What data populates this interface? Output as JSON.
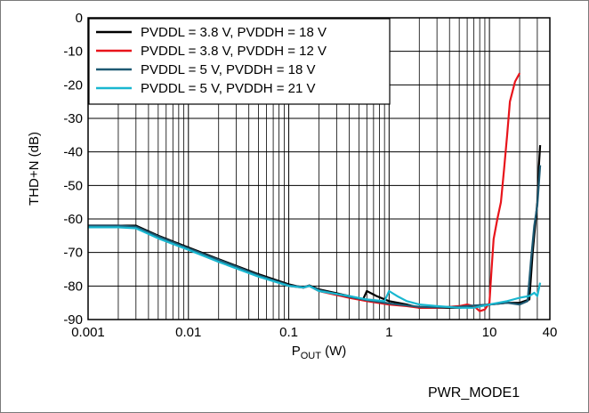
{
  "figure_id": "PWR_MODE1",
  "chart_data": {
    "type": "line",
    "xscale": "log",
    "xlim": [
      0.001,
      40
    ],
    "ylim": [
      -90,
      0
    ],
    "xlabel_main": "P",
    "xlabel_sub": "OUT",
    "xlabel_unit": " (W)",
    "ylabel": "THD+N (dB)",
    "xticks": [
      0.001,
      0.01,
      0.1,
      1,
      10,
      40
    ],
    "xtick_labels": [
      "0.001",
      "0.01",
      "0.1",
      "1",
      "10",
      "40"
    ],
    "yticks": [
      0,
      -10,
      -20,
      -30,
      -40,
      -50,
      -60,
      -70,
      -80,
      -90
    ],
    "ytick_labels": [
      "0",
      "-10",
      "-20",
      "-30",
      "-40",
      "-50",
      "-60",
      "-70",
      "-80",
      "-90"
    ],
    "grid": true,
    "legend_position": "top-left",
    "series": [
      {
        "name": "PVDDL = 3.8 V, PVDDH = 18 V",
        "color": "#000000",
        "points": [
          [
            0.001,
            -62
          ],
          [
            0.002,
            -62
          ],
          [
            0.003,
            -62
          ],
          [
            0.005,
            -65
          ],
          [
            0.01,
            -68.5
          ],
          [
            0.02,
            -72
          ],
          [
            0.05,
            -76.5
          ],
          [
            0.1,
            -79.5
          ],
          [
            0.14,
            -80.5
          ],
          [
            0.16,
            -79.8
          ],
          [
            0.2,
            -81
          ],
          [
            0.4,
            -83
          ],
          [
            0.55,
            -84
          ],
          [
            0.6,
            -81.5
          ],
          [
            0.75,
            -83
          ],
          [
            1,
            -84.5
          ],
          [
            1.5,
            -85.5
          ],
          [
            2,
            -86.5
          ],
          [
            3,
            -86.5
          ],
          [
            5,
            -86.5
          ],
          [
            7,
            -86
          ],
          [
            10,
            -85.5
          ],
          [
            15,
            -85
          ],
          [
            20,
            -85
          ],
          [
            25,
            -84
          ],
          [
            27,
            -70
          ],
          [
            29,
            -60
          ],
          [
            30,
            -55
          ],
          [
            31,
            -45
          ],
          [
            32,
            -38
          ]
        ]
      },
      {
        "name": "PVDDL = 3.8 V, PVDDH = 12 V",
        "color": "#e8141b",
        "points": [
          [
            0.001,
            -62
          ],
          [
            0.002,
            -62
          ],
          [
            0.003,
            -62.5
          ],
          [
            0.005,
            -65.5
          ],
          [
            0.01,
            -69
          ],
          [
            0.02,
            -72.5
          ],
          [
            0.05,
            -77
          ],
          [
            0.1,
            -80
          ],
          [
            0.14,
            -80.5
          ],
          [
            0.16,
            -80
          ],
          [
            0.2,
            -81.5
          ],
          [
            0.4,
            -83.5
          ],
          [
            0.6,
            -84.5
          ],
          [
            1,
            -85.5
          ],
          [
            1.5,
            -86
          ],
          [
            2,
            -86.5
          ],
          [
            3,
            -86.5
          ],
          [
            5,
            -86
          ],
          [
            6,
            -85.5
          ],
          [
            7,
            -86
          ],
          [
            8,
            -87.5
          ],
          [
            9,
            -87
          ],
          [
            10,
            -85
          ],
          [
            10.5,
            -75
          ],
          [
            11,
            -66
          ],
          [
            12,
            -60
          ],
          [
            13,
            -55
          ],
          [
            14,
            -45
          ],
          [
            15,
            -35
          ],
          [
            16,
            -25
          ],
          [
            18,
            -19
          ],
          [
            20,
            -16.5
          ]
        ]
      },
      {
        "name": "PVDDL = 5 V, PVDDH = 18 V",
        "color": "#1e5a73",
        "points": [
          [
            0.001,
            -62
          ],
          [
            0.002,
            -62
          ],
          [
            0.003,
            -62.3
          ],
          [
            0.005,
            -65.2
          ],
          [
            0.01,
            -68.8
          ],
          [
            0.02,
            -72.2
          ],
          [
            0.05,
            -76.8
          ],
          [
            0.1,
            -79.8
          ],
          [
            0.14,
            -80.3
          ],
          [
            0.16,
            -79.9
          ],
          [
            0.2,
            -81.2
          ],
          [
            0.4,
            -83.2
          ],
          [
            0.6,
            -84.2
          ],
          [
            1,
            -85.2
          ],
          [
            1.5,
            -85.8
          ],
          [
            2,
            -86.2
          ],
          [
            3,
            -86.3
          ],
          [
            5,
            -86.2
          ],
          [
            7,
            -85.8
          ],
          [
            10,
            -85.5
          ],
          [
            15,
            -85
          ],
          [
            20,
            -85.5
          ],
          [
            24,
            -84.5
          ],
          [
            26,
            -72
          ],
          [
            28,
            -62
          ],
          [
            30,
            -56
          ],
          [
            31,
            -50
          ],
          [
            32,
            -44
          ]
        ]
      },
      {
        "name": "PVDDL = 5 V, PVDDH = 21 V",
        "color": "#19b7d0",
        "points": [
          [
            0.001,
            -62.5
          ],
          [
            0.002,
            -62.5
          ],
          [
            0.003,
            -62.8
          ],
          [
            0.005,
            -65.8
          ],
          [
            0.01,
            -69.2
          ],
          [
            0.02,
            -72.8
          ],
          [
            0.05,
            -77.2
          ],
          [
            0.1,
            -80
          ],
          [
            0.14,
            -80.5
          ],
          [
            0.16,
            -80
          ],
          [
            0.2,
            -81.5
          ],
          [
            0.4,
            -83
          ],
          [
            0.6,
            -84
          ],
          [
            0.9,
            -84.5
          ],
          [
            1.0,
            -81.5
          ],
          [
            1.2,
            -83
          ],
          [
            1.5,
            -84.5
          ],
          [
            2,
            -85.5
          ],
          [
            3,
            -86
          ],
          [
            5,
            -86.5
          ],
          [
            7,
            -86.5
          ],
          [
            10,
            -85.5
          ],
          [
            15,
            -84.5
          ],
          [
            20,
            -83.5
          ],
          [
            25,
            -83
          ],
          [
            28,
            -82
          ],
          [
            30,
            -83
          ],
          [
            32,
            -79
          ]
        ]
      }
    ]
  }
}
